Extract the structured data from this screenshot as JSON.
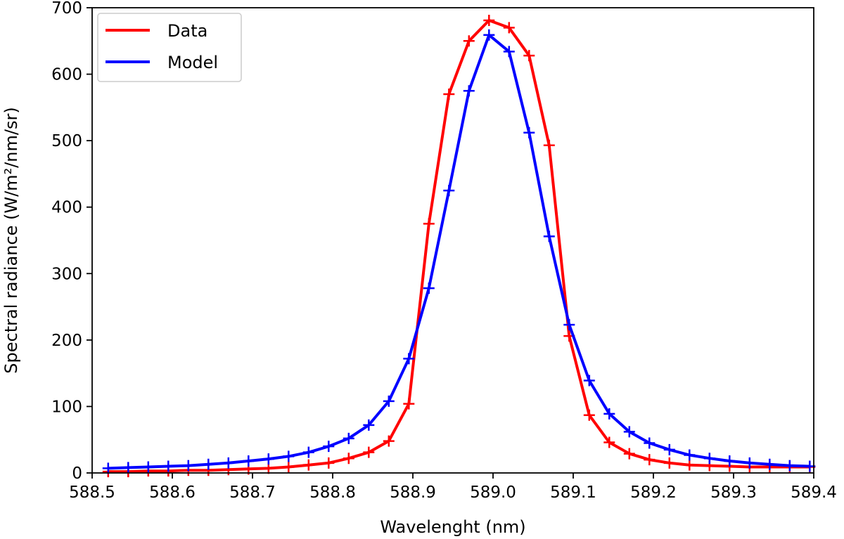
{
  "chart_data": {
    "type": "line",
    "title": "",
    "xlabel": "Wavelenght (nm)",
    "ylabel": "Spectral radiance (W/m²/nm/sr)",
    "xlim": [
      588.5,
      589.4
    ],
    "ylim": [
      0,
      700
    ],
    "x_ticks": [
      "588.5",
      "588.6",
      "588.7",
      "588.8",
      "588.9",
      "589.0",
      "589.1",
      "589.2",
      "589.3",
      "589.4"
    ],
    "y_ticks": [
      "0",
      "100",
      "200",
      "300",
      "400",
      "500",
      "600",
      "700"
    ],
    "grid": false,
    "legend_position": "top-left",
    "series": [
      {
        "name": "Data",
        "color": "#ff0000",
        "marker": "plus",
        "x": [
          588.52,
          588.545,
          588.57,
          588.595,
          588.62,
          588.645,
          588.67,
          588.695,
          588.72,
          588.745,
          588.77,
          588.795,
          588.82,
          588.845,
          588.87,
          588.895,
          588.92,
          588.945,
          588.97,
          588.995,
          589.02,
          589.045,
          589.07,
          589.095,
          589.12,
          589.145,
          589.17,
          589.195,
          589.22,
          589.245,
          589.27,
          589.295,
          589.32,
          589.345,
          589.37,
          589.395
        ],
        "y": [
          2,
          2,
          3,
          3,
          4,
          4,
          5,
          6,
          7,
          9,
          12,
          15,
          22,
          31,
          48,
          104,
          375,
          570,
          650,
          681,
          670,
          628,
          493,
          206,
          87,
          46,
          29,
          20,
          15,
          12,
          11,
          10,
          9,
          9,
          9,
          9
        ]
      },
      {
        "name": "Model",
        "color": "#0000ff",
        "marker": "plus",
        "x": [
          588.52,
          588.545,
          588.57,
          588.595,
          588.62,
          588.645,
          588.67,
          588.695,
          588.72,
          588.745,
          588.77,
          588.795,
          588.82,
          588.845,
          588.87,
          588.895,
          588.92,
          588.945,
          588.97,
          588.995,
          589.02,
          589.045,
          589.07,
          589.095,
          589.12,
          589.145,
          589.17,
          589.195,
          589.22,
          589.245,
          589.27,
          589.295,
          589.32,
          589.345,
          589.37,
          589.395
        ],
        "y": [
          7,
          8,
          9,
          10,
          11,
          13,
          15,
          18,
          21,
          25,
          31,
          40,
          52,
          72,
          108,
          172,
          278,
          425,
          575,
          659,
          634,
          512,
          356,
          223,
          139,
          89,
          62,
          45,
          35,
          27,
          22,
          18,
          15,
          13,
          11,
          10
        ]
      }
    ]
  }
}
